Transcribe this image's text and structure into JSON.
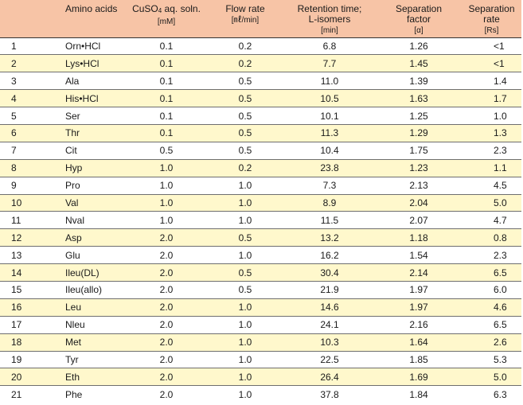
{
  "header": {
    "amino_acids": "Amino acids",
    "cuso4_a": "CuSO",
    "cuso4_sub": "4",
    "cuso4_b": " aq. soln.",
    "cuso4_unit": "[mM]",
    "flow_rate": "Flow rate",
    "flow_unit": "[㎖/min]",
    "retention_1": "Retention time;",
    "retention_2": "L-isomers",
    "retention_unit": "[min]",
    "sep_factor_1": "Separation",
    "sep_factor_2": "factor",
    "sep_factor_unit": "[α]",
    "sep_rate_1": "Separation",
    "sep_rate_2": "rate",
    "sep_rate_unit": "[Rs]"
  },
  "rows": [
    {
      "no": "1",
      "amino": "Orn•HCl",
      "cuso4": "0.1",
      "flow": "0.2",
      "retention": "6.8",
      "factor": "1.26",
      "rate": "<1"
    },
    {
      "no": "2",
      "amino": "Lys•HCl",
      "cuso4": "0.1",
      "flow": "0.2",
      "retention": "7.7",
      "factor": "1.45",
      "rate": "<1"
    },
    {
      "no": "3",
      "amino": "Ala",
      "cuso4": "0.1",
      "flow": "0.5",
      "retention": "11.0",
      "factor": "1.39",
      "rate": "1.4"
    },
    {
      "no": "4",
      "amino": "His•HCl",
      "cuso4": "0.1",
      "flow": "0.5",
      "retention": "10.5",
      "factor": "1.63",
      "rate": "1.7"
    },
    {
      "no": "5",
      "amino": "Ser",
      "cuso4": "0.1",
      "flow": "0.5",
      "retention": "10.1",
      "factor": "1.25",
      "rate": "1.0"
    },
    {
      "no": "6",
      "amino": "Thr",
      "cuso4": "0.1",
      "flow": "0.5",
      "retention": "11.3",
      "factor": "1.29",
      "rate": "1.3"
    },
    {
      "no": "7",
      "amino": "Cit",
      "cuso4": "0.5",
      "flow": "0.5",
      "retention": "10.4",
      "factor": "1.75",
      "rate": "2.3"
    },
    {
      "no": "8",
      "amino": "Hyp",
      "cuso4": "1.0",
      "flow": "0.2",
      "retention": "23.8",
      "factor": "1.23",
      "rate": "1.1"
    },
    {
      "no": "9",
      "amino": "Pro",
      "cuso4": "1.0",
      "flow": "1.0",
      "retention": "7.3",
      "factor": "2.13",
      "rate": "4.5"
    },
    {
      "no": "10",
      "amino": "Val",
      "cuso4": "1.0",
      "flow": "1.0",
      "retention": "8.9",
      "factor": "2.04",
      "rate": "5.0"
    },
    {
      "no": "11",
      "amino": "Nval",
      "cuso4": "1.0",
      "flow": "1.0",
      "retention": "11.5",
      "factor": "2.07",
      "rate": "4.7"
    },
    {
      "no": "12",
      "amino": "Asp",
      "cuso4": "2.0",
      "flow": "0.5",
      "retention": "13.2",
      "factor": "1.18",
      "rate": "0.8"
    },
    {
      "no": "13",
      "amino": "Glu",
      "cuso4": "2.0",
      "flow": "1.0",
      "retention": "16.2",
      "factor": "1.54",
      "rate": "2.3"
    },
    {
      "no": "14",
      "amino": "Ileu(DL)",
      "cuso4": "2.0",
      "flow": "0.5",
      "retention": "30.4",
      "factor": "2.14",
      "rate": "6.5"
    },
    {
      "no": "15",
      "amino": "Ileu(allo)",
      "cuso4": "2.0",
      "flow": "0.5",
      "retention": "21.9",
      "factor": "1.97",
      "rate": "6.0"
    },
    {
      "no": "16",
      "amino": "Leu",
      "cuso4": "2.0",
      "flow": "1.0",
      "retention": "14.6",
      "factor": "1.97",
      "rate": "4.6"
    },
    {
      "no": "17",
      "amino": "Nleu",
      "cuso4": "2.0",
      "flow": "1.0",
      "retention": "24.1",
      "factor": "2.16",
      "rate": "6.5"
    },
    {
      "no": "18",
      "amino": "Met",
      "cuso4": "2.0",
      "flow": "1.0",
      "retention": "10.3",
      "factor": "1.64",
      "rate": "2.6"
    },
    {
      "no": "19",
      "amino": "Tyr",
      "cuso4": "2.0",
      "flow": "1.0",
      "retention": "22.5",
      "factor": "1.85",
      "rate": "5.3"
    },
    {
      "no": "20",
      "amino": "Eth",
      "cuso4": "2.0",
      "flow": "1.0",
      "retention": "26.4",
      "factor": "1.69",
      "rate": "5.0"
    },
    {
      "no": "21",
      "amino": "Phe",
      "cuso4": "2.0",
      "flow": "1.0",
      "retention": "37.8",
      "factor": "1.84",
      "rate": "6.3"
    }
  ],
  "colors": {
    "header_bg": "#f7c4a6",
    "stripe_bg": "#fff8cc",
    "row_bg": "#ffffff"
  }
}
